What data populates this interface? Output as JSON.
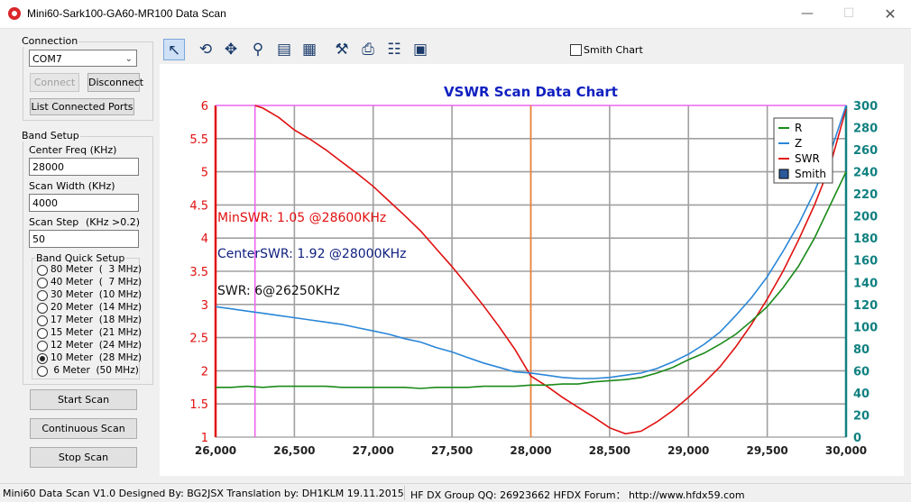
{
  "window": {
    "title": "Mini60-Sark100-GA60-MR100 Data Scan"
  },
  "connection": {
    "label": "Connection",
    "port": "COM7",
    "connect_label": "Connect",
    "disconnect_label": "Disconnect",
    "list_ports_label": "List Connected Ports"
  },
  "band_setup": {
    "label": "Band Setup",
    "center_label": "Center Freq  (KHz)",
    "center_value": "28000",
    "width_label": "Scan Width   (KHz)",
    "width_value": "4000",
    "step_label": "Scan Step",
    "step_hint": "(KHz >0.2)",
    "step_value": "50",
    "quick_label": "Band Quick Setup",
    "bands": [
      {
        "label": "80 Meter  (  3 MHz)",
        "selected": false
      },
      {
        "label": "40 Meter  (  7 MHz)",
        "selected": false
      },
      {
        "label": "30 Meter  (10 MHz)",
        "selected": false
      },
      {
        "label": "20 Meter  (14 MHz)",
        "selected": false
      },
      {
        "label": "17 Meter  (18 MHz)",
        "selected": false
      },
      {
        "label": "15 Meter  (21 MHz)",
        "selected": false
      },
      {
        "label": "12 Meter  (24 MHz)",
        "selected": false
      },
      {
        "label": "10 Meter  (28 MHz)",
        "selected": true
      },
      {
        "label": " 6 Meter  (50 MHz)",
        "selected": false
      }
    ]
  },
  "actions": {
    "start": "Start Scan",
    "continuous": "Continuous Scan",
    "stop": "Stop Scan"
  },
  "toolbar": {
    "smith_label": "Smith Chart"
  },
  "status": {
    "left": "Mini60 Data Scan V1.0   Designed By: BG2JSX  Translation by: DH1KLM    19.11.2015",
    "right": "HF DX Group QQ: 26923662  HFDX Forum：  http://www.hfdx59.com"
  },
  "colors": {
    "swr": "#e01010",
    "r": "#1a8a1a",
    "z": "#2a86d8",
    "right_axis": "#108080",
    "title": "#1020c0",
    "marker": "#ee66ee",
    "center": "#f08030"
  },
  "chart_data": {
    "type": "line",
    "title": "VSWR Scan Data Chart",
    "xlim": [
      26000,
      30000
    ],
    "ylim_left": [
      1,
      6
    ],
    "ylim_right": [
      0,
      300
    ],
    "x_ticks": [
      "26,000",
      "26,500",
      "27,000",
      "27,500",
      "28,000",
      "28,500",
      "29,000",
      "29,500",
      "30,000"
    ],
    "y_left_ticks": [
      "1",
      "1.5",
      "2",
      "2.5",
      "3",
      "3.5",
      "4",
      "4.5",
      "5",
      "5.5",
      "6"
    ],
    "y_right_ticks": [
      "0",
      "20",
      "40",
      "60",
      "80",
      "100",
      "120",
      "140",
      "160",
      "180",
      "200",
      "220",
      "240",
      "260",
      "280",
      "300"
    ],
    "grid": true,
    "legend_position": "top-right",
    "legend": [
      "R",
      "Z",
      "SWR",
      "Smith"
    ],
    "markers": {
      "min_x": 26250,
      "center_x": 28000
    },
    "annotations": {
      "min_swr": "MinSWR: 1.05 @28600KHz",
      "center_swr": "CenterSWR: 1.92 @28000KHz",
      "swr": "SWR: 6@26250KHz"
    },
    "series": [
      {
        "name": "SWR",
        "axis": "left",
        "x": [
          26250,
          26300,
          26400,
          26500,
          26600,
          26700,
          26800,
          26900,
          27000,
          27100,
          27200,
          27300,
          27400,
          27500,
          27600,
          27700,
          27800,
          27900,
          28000,
          28100,
          28200,
          28300,
          28400,
          28500,
          28600,
          28700,
          28800,
          28900,
          29000,
          29100,
          29200,
          29300,
          29400,
          29500,
          29600,
          29700,
          29800,
          29900,
          30000
        ],
        "y": [
          6.0,
          5.96,
          5.82,
          5.63,
          5.49,
          5.33,
          5.15,
          4.97,
          4.78,
          4.56,
          4.34,
          4.11,
          3.84,
          3.57,
          3.28,
          2.98,
          2.66,
          2.32,
          1.92,
          1.77,
          1.6,
          1.45,
          1.3,
          1.14,
          1.05,
          1.09,
          1.23,
          1.4,
          1.6,
          1.82,
          2.06,
          2.36,
          2.7,
          3.08,
          3.5,
          3.98,
          4.5,
          5.1,
          5.95
        ]
      },
      {
        "name": "R",
        "axis": "right",
        "x": [
          26000,
          26100,
          26200,
          26300,
          26400,
          26500,
          26600,
          26700,
          26800,
          26900,
          27000,
          27100,
          27200,
          27300,
          27400,
          27500,
          27600,
          27700,
          27800,
          27900,
          28000,
          28100,
          28200,
          28300,
          28400,
          28500,
          28600,
          28700,
          28800,
          28900,
          29000,
          29100,
          29200,
          29300,
          29400,
          29500,
          29600,
          29700,
          29800,
          29900,
          30000
        ],
        "y": [
          45,
          45,
          46,
          45,
          46,
          46,
          46,
          46,
          45,
          45,
          45,
          45,
          45,
          44,
          45,
          45,
          45,
          46,
          46,
          46,
          47,
          47,
          48,
          48,
          50,
          51,
          52,
          54,
          58,
          63,
          70,
          76,
          84,
          93,
          105,
          118,
          135,
          155,
          180,
          210,
          240
        ]
      },
      {
        "name": "Z",
        "axis": "right",
        "x": [
          26000,
          26100,
          26200,
          26300,
          26400,
          26500,
          26600,
          26700,
          26800,
          26900,
          27000,
          27100,
          27200,
          27300,
          27400,
          27500,
          27600,
          27700,
          27800,
          27900,
          28000,
          28100,
          28200,
          28300,
          28400,
          28500,
          28600,
          28700,
          28800,
          28900,
          29000,
          29100,
          29200,
          29300,
          29400,
          29500,
          29600,
          29700,
          29800,
          29900,
          30000
        ],
        "y": [
          118,
          116,
          114,
          112,
          110,
          108,
          106,
          104,
          102,
          99,
          96,
          93,
          89,
          86,
          81,
          77,
          72,
          67,
          63,
          59,
          58,
          56,
          54,
          53,
          53,
          54,
          56,
          58,
          62,
          68,
          75,
          84,
          95,
          110,
          126,
          145,
          168,
          193,
          222,
          257,
          300
        ]
      }
    ]
  }
}
